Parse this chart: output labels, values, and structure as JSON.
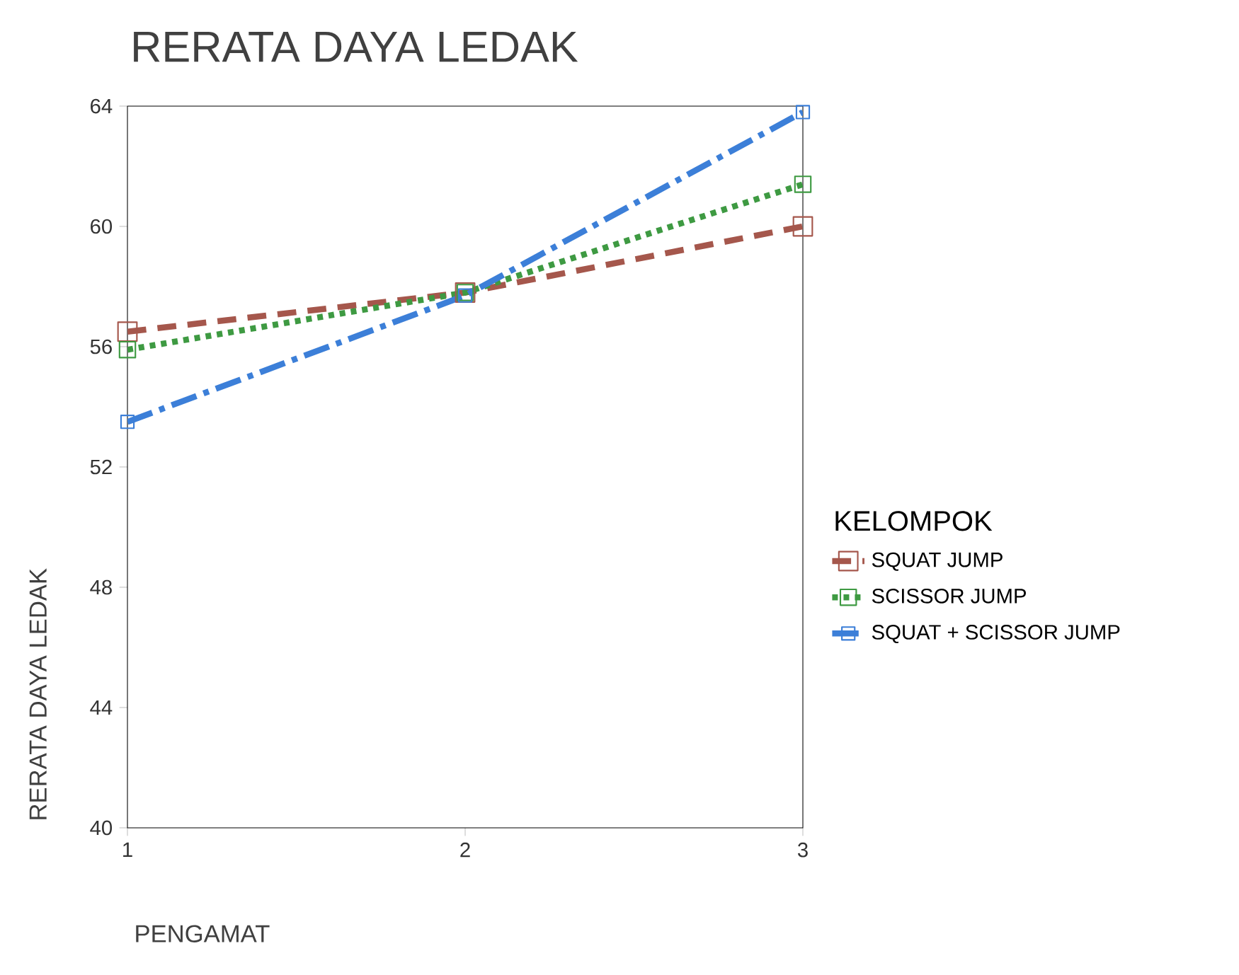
{
  "chart_data": {
    "type": "line",
    "title": "RERATA DAYA LEDAK",
    "xlabel": "PENGAMAT",
    "ylabel": "RERATA DAYA LEDAK",
    "legend_title": "KELOMPOK",
    "legend": "right",
    "marker": "square",
    "x": [
      1,
      2,
      3
    ],
    "xlim": [
      1,
      3
    ],
    "xticks": [
      1,
      2,
      3
    ],
    "ylim": [
      40,
      64
    ],
    "yticks": [
      40,
      44,
      48,
      52,
      56,
      60,
      64
    ],
    "series": [
      {
        "name": "SQUAT JUMP",
        "color": "#a5574c",
        "line_style": "dashed",
        "values": [
          56.5,
          57.8,
          60.0
        ]
      },
      {
        "name": "SCISSOR JUMP",
        "color": "#3e9a42",
        "line_style": "dotted",
        "values": [
          55.9,
          57.8,
          61.4
        ]
      },
      {
        "name": "SQUAT + SCISSOR JUMP",
        "color": "#3c7fd8",
        "line_style": "dashdot",
        "values": [
          53.5,
          57.7,
          63.8
        ]
      }
    ]
  }
}
